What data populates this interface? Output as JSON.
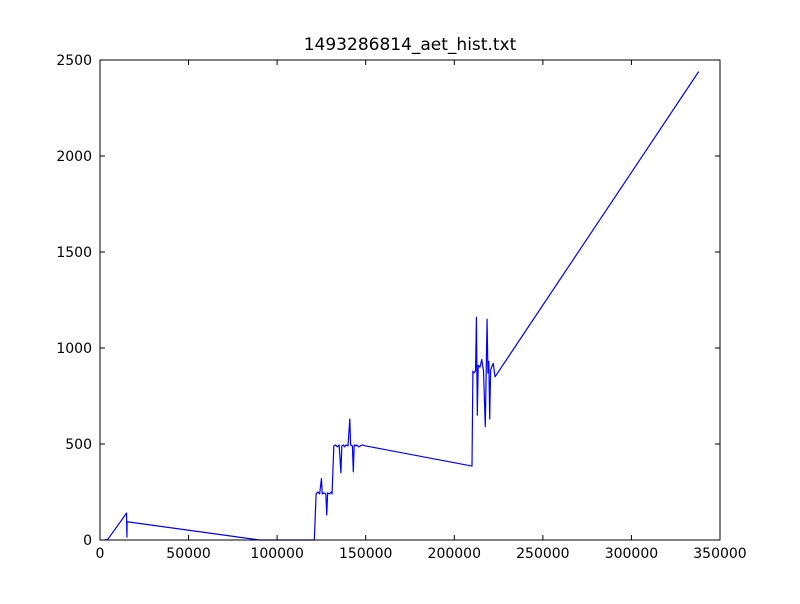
{
  "chart_data": {
    "type": "line",
    "title": "1493286814_aet_hist.txt",
    "xlabel": "",
    "ylabel": "",
    "xlim": [
      0,
      350000
    ],
    "ylim": [
      0,
      2500
    ],
    "xticks": [
      0,
      50000,
      100000,
      150000,
      200000,
      250000,
      300000,
      350000
    ],
    "yticks": [
      0,
      500,
      1000,
      1500,
      2000,
      2500
    ],
    "grid": false,
    "legend": "none",
    "series_color": "#0000ff",
    "series": [
      {
        "points": [
          [
            2500,
            0
          ],
          [
            4500,
            5
          ],
          [
            15000,
            140
          ],
          [
            15100,
            50
          ],
          [
            15200,
            15
          ],
          [
            15300,
            95
          ],
          [
            90000,
            0
          ],
          [
            121000,
            0
          ],
          [
            122000,
            240
          ],
          [
            123000,
            250
          ],
          [
            124000,
            240
          ],
          [
            125000,
            320
          ],
          [
            125500,
            240
          ],
          [
            126500,
            245
          ],
          [
            127500,
            240
          ],
          [
            128000,
            130
          ],
          [
            128500,
            245
          ],
          [
            129500,
            240
          ],
          [
            130500,
            250
          ],
          [
            131000,
            240
          ],
          [
            132000,
            490
          ],
          [
            133000,
            495
          ],
          [
            134000,
            485
          ],
          [
            135000,
            495
          ],
          [
            136000,
            350
          ],
          [
            136500,
            490
          ],
          [
            137500,
            495
          ],
          [
            138000,
            485
          ],
          [
            139000,
            495
          ],
          [
            140000,
            490
          ],
          [
            141000,
            630
          ],
          [
            141500,
            495
          ],
          [
            142500,
            490
          ],
          [
            143000,
            355
          ],
          [
            143500,
            495
          ],
          [
            144500,
            490
          ],
          [
            145000,
            495
          ],
          [
            146000,
            485
          ],
          [
            147000,
            490
          ],
          [
            148000,
            495
          ],
          [
            150000,
            490
          ],
          [
            210000,
            385
          ],
          [
            210500,
            880
          ],
          [
            211000,
            870
          ],
          [
            212000,
            880
          ],
          [
            212500,
            1160
          ],
          [
            213000,
            650
          ],
          [
            213500,
            910
          ],
          [
            214500,
            900
          ],
          [
            215500,
            940
          ],
          [
            216500,
            880
          ],
          [
            217500,
            590
          ],
          [
            218500,
            1150
          ],
          [
            219000,
            870
          ],
          [
            219500,
            930
          ],
          [
            220000,
            630
          ],
          [
            220500,
            880
          ],
          [
            221000,
            900
          ],
          [
            222000,
            920
          ],
          [
            223000,
            850
          ],
          [
            338000,
            2440
          ]
        ]
      }
    ]
  }
}
